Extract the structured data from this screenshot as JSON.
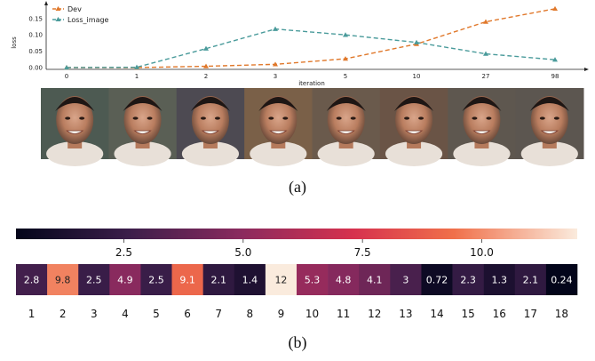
{
  "panel_a": {
    "caption": "(a)",
    "chart_data": {
      "type": "line",
      "categories": [
        "0",
        "1",
        "2",
        "3",
        "5",
        "10",
        "27",
        "98"
      ],
      "xlabel": "iteration",
      "ylabel": "loss",
      "yticks": [
        "0.00",
        "0.05",
        "0.10",
        "0.15"
      ],
      "ylim": [
        0,
        0.185
      ],
      "legend_position": "top-left",
      "series": [
        {
          "name": "Dev",
          "color": "#e0782b",
          "marker": "triangle-up",
          "values": [
            0.0,
            0.0,
            0.004,
            0.01,
            0.027,
            0.072,
            0.14,
            0.18
          ]
        },
        {
          "name": "Loss_image",
          "color": "#4a9b9b",
          "marker": "triangle-up",
          "values": [
            0.0,
            0.001,
            0.058,
            0.118,
            0.1,
            0.077,
            0.042,
            0.024
          ]
        }
      ]
    },
    "image_strip": {
      "count": 8,
      "subject": "face-photo"
    }
  },
  "panel_b": {
    "caption": "(b)",
    "chart_data": {
      "type": "heatmap",
      "colorbar_ticks": [
        "2.5",
        "5.0",
        "7.5",
        "10.0"
      ],
      "colorbar_range": [
        0.24,
        12
      ],
      "columns": [
        "1",
        "2",
        "3",
        "4",
        "5",
        "6",
        "7",
        "8",
        "9",
        "10",
        "11",
        "12",
        "13",
        "14",
        "15",
        "16",
        "17",
        "18"
      ],
      "values": [
        2.8,
        9.8,
        2.5,
        4.9,
        2.5,
        9.1,
        2.1,
        1.4,
        12,
        5.3,
        4.8,
        4.1,
        3,
        0.72,
        2.3,
        1.3,
        2.1,
        0.24
      ],
      "labels": [
        "2.8",
        "9.8",
        "2.5",
        "4.9",
        "2.5",
        "9.1",
        "2.1",
        "1.4",
        "12",
        "5.3",
        "4.8",
        "4.1",
        "3",
        "0.72",
        "2.3",
        "1.3",
        "2.1",
        "0.24"
      ]
    }
  }
}
